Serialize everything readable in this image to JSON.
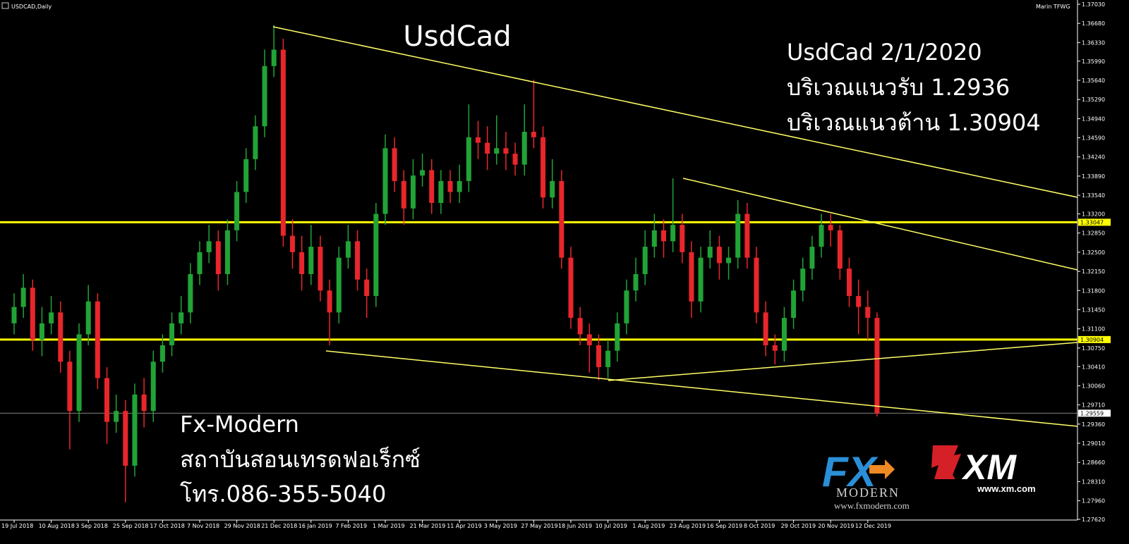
{
  "chart_data": {
    "type": "candlestick",
    "symbol": "USDCAD,Daily",
    "account": "Marin TFWG",
    "title": "UsdCad",
    "annotations": [
      "UsdCad 2/1/2020",
      "บริเวณแนวรับ 1.2936",
      "บริเวณแนวต้าน 1.30904"
    ],
    "footer": [
      "Fx-Modern",
      "สถาบันสอนเทรดฟอเร็กซ์",
      "โทร.086-355-5040"
    ],
    "logos": {
      "fx": "FX",
      "modern": "MODERN",
      "fx_url": "www.fxmodern.com",
      "xm": "XM",
      "xm_url": "www.xm.com"
    },
    "up_color": "#21a336",
    "down_color": "#e8262b",
    "ylim": [
      1.2762,
      1.3703
    ],
    "yticks": [
      {
        "value": 1.3703,
        "label": "1.37030"
      },
      {
        "value": 1.3668,
        "label": "1.36680"
      },
      {
        "value": 1.3633,
        "label": "1.36330"
      },
      {
        "value": 1.3599,
        "label": "1.35990"
      },
      {
        "value": 1.3564,
        "label": "1.35640"
      },
      {
        "value": 1.3529,
        "label": "1.35290"
      },
      {
        "value": 1.3494,
        "label": "1.34940"
      },
      {
        "value": 1.3459,
        "label": "1.34590"
      },
      {
        "value": 1.3424,
        "label": "1.34240"
      },
      {
        "value": 1.3389,
        "label": "1.33890"
      },
      {
        "value": 1.3354,
        "label": "1.33540"
      },
      {
        "value": 1.332,
        "label": "1.33200"
      },
      {
        "value": 1.3285,
        "label": "1.32850"
      },
      {
        "value": 1.325,
        "label": "1.32500"
      },
      {
        "value": 1.3215,
        "label": "1.32150"
      },
      {
        "value": 1.318,
        "label": "1.31800"
      },
      {
        "value": 1.3145,
        "label": "1.31450"
      },
      {
        "value": 1.311,
        "label": "1.31100"
      },
      {
        "value": 1.3075,
        "label": "1.30750"
      },
      {
        "value": 1.3041,
        "label": "1.30410"
      },
      {
        "value": 1.3006,
        "label": "1.30060"
      },
      {
        "value": 1.2971,
        "label": "1.29710"
      },
      {
        "value": 1.2936,
        "label": "1.29360"
      },
      {
        "value": 1.2901,
        "label": "1.29010"
      },
      {
        "value": 1.2866,
        "label": "1.28660"
      },
      {
        "value": 1.2831,
        "label": "1.28310"
      },
      {
        "value": 1.2796,
        "label": "1.27960"
      },
      {
        "value": 1.2762,
        "label": "1.27620"
      }
    ],
    "levels": [
      {
        "value": 1.33047,
        "color": "#ffff00"
      },
      {
        "value": 1.30904,
        "color": "#ffff00"
      },
      {
        "value": 1.29559,
        "color": "#808080"
      }
    ],
    "categories": [
      "19 Jul 2018",
      null,
      null,
      null,
      "10 Aug 2018",
      null,
      null,
      null,
      "3 Sep 2018",
      null,
      null,
      null,
      "25 Sep 2018",
      null,
      null,
      null,
      "17 Oct 2018",
      null,
      null,
      null,
      "7 Nov 2018",
      null,
      null,
      null,
      "29 Nov 2018",
      null,
      null,
      null,
      "21 Dec 2018",
      null,
      null,
      null,
      "16 Jan 2019",
      null,
      null,
      null,
      "7 Feb 2019",
      null,
      null,
      null,
      "1 Mar 2019",
      null,
      null,
      null,
      "21 Mar 2019",
      null,
      null,
      null,
      "11 Apr 2019",
      null,
      null,
      null,
      "3 May 2019",
      null,
      null,
      null,
      "27 May 2019",
      null,
      null,
      null,
      "18 Jun 2019",
      null,
      null,
      null,
      "10 Jul 2019",
      null,
      null,
      null,
      "1 Aug 2019",
      null,
      null,
      null,
      "23 Aug 2019",
      null,
      null,
      null,
      "16 Sep 2019",
      null,
      null,
      null,
      "8 Oct 2019",
      null,
      null,
      null,
      "29 Oct 2019",
      null,
      null,
      null,
      "20 Nov 2019",
      null,
      null,
      null,
      "12 Dec 2019",
      null
    ],
    "candles": [
      [
        1.312,
        1.3175,
        1.31,
        1.315
      ],
      [
        1.315,
        1.321,
        1.313,
        1.3185
      ],
      [
        1.3185,
        1.32,
        1.307,
        1.309
      ],
      [
        1.309,
        1.315,
        1.306,
        1.312
      ],
      [
        1.312,
        1.317,
        1.31,
        1.314
      ],
      [
        1.314,
        1.316,
        1.303,
        1.305
      ],
      [
        1.305,
        1.307,
        1.289,
        1.296
      ],
      [
        1.296,
        1.312,
        1.294,
        1.31
      ],
      [
        1.31,
        1.319,
        1.308,
        1.316
      ],
      [
        1.316,
        1.3175,
        1.3,
        1.302
      ],
      [
        1.302,
        1.304,
        1.29,
        1.294
      ],
      [
        1.294,
        1.299,
        1.292,
        1.296
      ],
      [
        1.296,
        1.298,
        1.2793,
        1.286
      ],
      [
        1.286,
        1.301,
        1.284,
        1.299
      ],
      [
        1.299,
        1.302,
        1.293,
        1.296
      ],
      [
        1.296,
        1.307,
        1.294,
        1.305
      ],
      [
        1.305,
        1.31,
        1.303,
        1.308
      ],
      [
        1.308,
        1.314,
        1.306,
        1.312
      ],
      [
        1.312,
        1.317,
        1.31,
        1.314
      ],
      [
        1.314,
        1.323,
        1.312,
        1.321
      ],
      [
        1.321,
        1.327,
        1.319,
        1.325
      ],
      [
        1.325,
        1.33,
        1.323,
        1.327
      ],
      [
        1.327,
        1.329,
        1.318,
        1.321
      ],
      [
        1.321,
        1.331,
        1.319,
        1.329
      ],
      [
        1.329,
        1.338,
        1.327,
        1.336
      ],
      [
        1.336,
        1.344,
        1.334,
        1.342
      ],
      [
        1.342,
        1.35,
        1.34,
        1.348
      ],
      [
        1.348,
        1.362,
        1.346,
        1.359
      ],
      [
        1.359,
        1.3665,
        1.357,
        1.362
      ],
      [
        1.362,
        1.364,
        1.326,
        1.328
      ],
      [
        1.328,
        1.331,
        1.322,
        1.325
      ],
      [
        1.325,
        1.328,
        1.318,
        1.321
      ],
      [
        1.321,
        1.33,
        1.319,
        1.326
      ],
      [
        1.326,
        1.328,
        1.316,
        1.318
      ],
      [
        1.318,
        1.32,
        1.308,
        1.314
      ],
      [
        1.314,
        1.326,
        1.312,
        1.324
      ],
      [
        1.324,
        1.33,
        1.322,
        1.327
      ],
      [
        1.327,
        1.329,
        1.318,
        1.32
      ],
      [
        1.32,
        1.322,
        1.313,
        1.317
      ],
      [
        1.317,
        1.334,
        1.315,
        1.332
      ],
      [
        1.332,
        1.3465,
        1.33,
        1.344
      ],
      [
        1.344,
        1.346,
        1.336,
        1.338
      ],
      [
        1.338,
        1.34,
        1.33,
        1.333
      ],
      [
        1.333,
        1.342,
        1.331,
        1.339
      ],
      [
        1.339,
        1.343,
        1.337,
        1.34
      ],
      [
        1.34,
        1.342,
        1.332,
        1.334
      ],
      [
        1.334,
        1.34,
        1.332,
        1.338
      ],
      [
        1.338,
        1.34,
        1.334,
        1.336
      ],
      [
        1.336,
        1.341,
        1.334,
        1.338
      ],
      [
        1.338,
        1.352,
        1.336,
        1.346
      ],
      [
        1.346,
        1.349,
        1.342,
        1.345
      ],
      [
        1.345,
        1.348,
        1.34,
        1.343
      ],
      [
        1.343,
        1.35,
        1.341,
        1.344
      ],
      [
        1.344,
        1.347,
        1.34,
        1.343
      ],
      [
        1.343,
        1.345,
        1.339,
        1.341
      ],
      [
        1.341,
        1.352,
        1.339,
        1.347
      ],
      [
        1.347,
        1.3565,
        1.344,
        1.346
      ],
      [
        1.346,
        1.348,
        1.333,
        1.335
      ],
      [
        1.335,
        1.342,
        1.333,
        1.338
      ],
      [
        1.338,
        1.34,
        1.322,
        1.324
      ],
      [
        1.324,
        1.326,
        1.311,
        1.313
      ],
      [
        1.313,
        1.315,
        1.308,
        1.31
      ],
      [
        1.31,
        1.312,
        1.303,
        1.308
      ],
      [
        1.308,
        1.31,
        1.3016,
        1.304
      ],
      [
        1.304,
        1.309,
        1.302,
        1.307
      ],
      [
        1.307,
        1.314,
        1.305,
        1.312
      ],
      [
        1.312,
        1.32,
        1.31,
        1.318
      ],
      [
        1.318,
        1.324,
        1.316,
        1.321
      ],
      [
        1.321,
        1.329,
        1.319,
        1.326
      ],
      [
        1.326,
        1.332,
        1.324,
        1.329
      ],
      [
        1.329,
        1.331,
        1.324,
        1.327
      ],
      [
        1.327,
        1.3385,
        1.325,
        1.33
      ],
      [
        1.33,
        1.332,
        1.323,
        1.325
      ],
      [
        1.325,
        1.327,
        1.313,
        1.316
      ],
      [
        1.316,
        1.326,
        1.314,
        1.324
      ],
      [
        1.324,
        1.329,
        1.322,
        1.326
      ],
      [
        1.326,
        1.328,
        1.32,
        1.323
      ],
      [
        1.323,
        1.326,
        1.32,
        1.324
      ],
      [
        1.324,
        1.3345,
        1.322,
        1.332
      ],
      [
        1.332,
        1.334,
        1.322,
        1.324
      ],
      [
        1.324,
        1.326,
        1.312,
        1.314
      ],
      [
        1.314,
        1.316,
        1.306,
        1.308
      ],
      [
        1.308,
        1.31,
        1.3045,
        1.307
      ],
      [
        1.307,
        1.315,
        1.305,
        1.313
      ],
      [
        1.313,
        1.32,
        1.311,
        1.318
      ],
      [
        1.318,
        1.324,
        1.316,
        1.322
      ],
      [
        1.322,
        1.328,
        1.32,
        1.326
      ],
      [
        1.326,
        1.332,
        1.324,
        1.33
      ],
      [
        1.33,
        1.332,
        1.326,
        1.329
      ],
      [
        1.329,
        1.33,
        1.32,
        1.322
      ],
      [
        1.322,
        1.324,
        1.315,
        1.317
      ],
      [
        1.317,
        1.32,
        1.31,
        1.315
      ],
      [
        1.315,
        1.318,
        1.309,
        1.313
      ],
      [
        1.313,
        1.314,
        1.295,
        1.2956
      ]
    ]
  }
}
